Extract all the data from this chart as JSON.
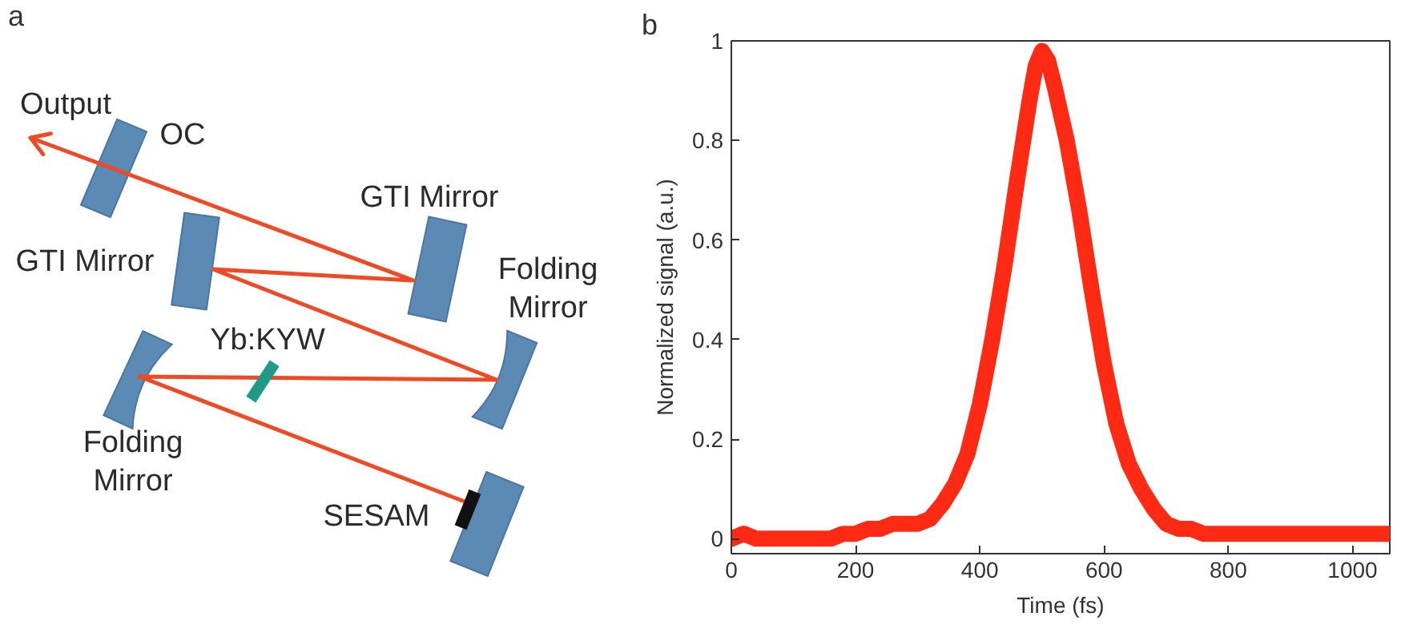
{
  "chart_data": [
    {
      "type": "other",
      "title": "a",
      "annotations": [
        "Output",
        "OC",
        "GTI Mirror",
        "GTI Mirror",
        "Folding Mirror",
        "Yb:KYW",
        "Folding Mirror",
        "SESAM"
      ]
    },
    {
      "type": "line",
      "title": "b",
      "xlabel": "Time (fs)",
      "ylabel": "Normalized signal (a.u.)",
      "xlim": [
        0,
        1060
      ],
      "ylim": [
        -0.03,
        1
      ],
      "xticks": [
        0,
        200,
        400,
        600,
        800,
        1000
      ],
      "yticks": [
        0,
        0.2,
        0.4,
        0.6,
        0.8,
        1
      ],
      "grid": false,
      "x": [
        0,
        20,
        40,
        60,
        80,
        100,
        120,
        140,
        160,
        180,
        200,
        220,
        240,
        260,
        280,
        300,
        320,
        340,
        360,
        380,
        400,
        420,
        440,
        460,
        480,
        490,
        500,
        510,
        520,
        540,
        560,
        580,
        600,
        620,
        640,
        660,
        680,
        700,
        720,
        740,
        760,
        780,
        800,
        820,
        840,
        860,
        880,
        900,
        920,
        940,
        960,
        980,
        1000,
        1020,
        1040,
        1060
      ],
      "series": [
        {
          "color": "#ff2a14",
          "values": [
            0.0,
            0.01,
            0.0,
            0.0,
            0.0,
            0.0,
            0.0,
            0.0,
            0.0,
            0.01,
            0.01,
            0.02,
            0.02,
            0.03,
            0.03,
            0.03,
            0.04,
            0.07,
            0.11,
            0.17,
            0.27,
            0.4,
            0.55,
            0.72,
            0.88,
            0.95,
            0.98,
            0.96,
            0.91,
            0.8,
            0.66,
            0.5,
            0.35,
            0.23,
            0.15,
            0.1,
            0.06,
            0.03,
            0.02,
            0.02,
            0.01,
            0.01,
            0.01,
            0.01,
            0.01,
            0.01,
            0.01,
            0.01,
            0.01,
            0.01,
            0.01,
            0.01,
            0.01,
            0.01,
            0.01,
            0.01
          ]
        }
      ]
    }
  ]
}
